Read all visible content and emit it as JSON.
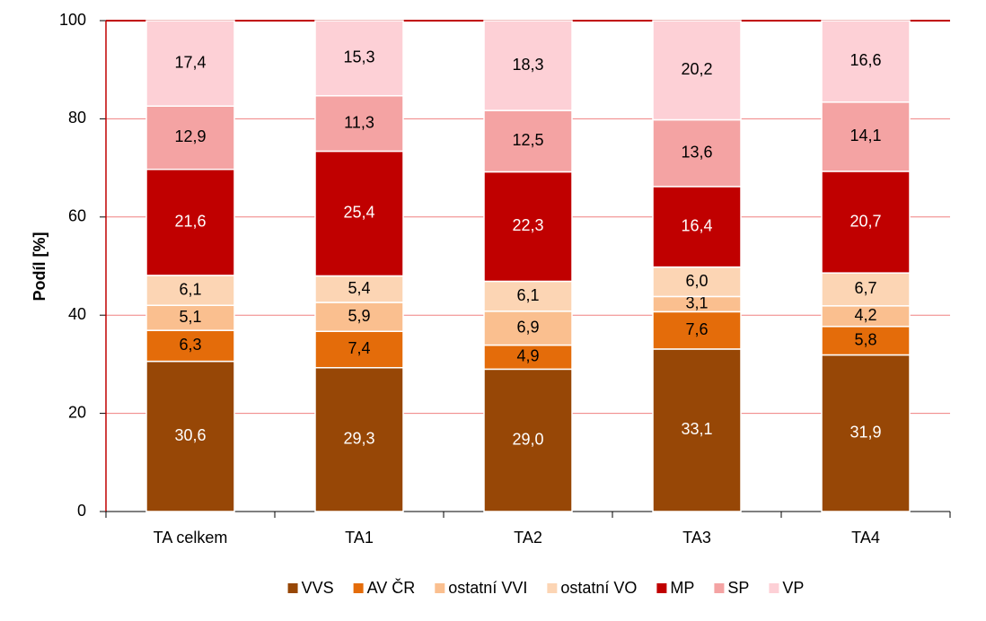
{
  "chart_data": {
    "type": "stacked_bar",
    "y_label": "Podíl [%]",
    "categories": [
      "TA celkem",
      "TA1",
      "TA2",
      "TA3",
      "TA4"
    ],
    "ylim": [
      0,
      100
    ],
    "yticks": [
      0,
      20,
      40,
      60,
      80,
      100
    ],
    "grid": true,
    "legend": "bottom",
    "series": [
      {
        "name": "VVS",
        "color": "#974706",
        "label_color": "#ffffff",
        "values": [
          30.6,
          29.3,
          29.0,
          33.1,
          31.9
        ],
        "value_labels": [
          "30,6",
          "29,3",
          "29,0",
          "33,1",
          "31,9"
        ]
      },
      {
        "name": "AV ČR",
        "color": "#e46c0a",
        "label_color": "#000000",
        "values": [
          6.3,
          7.4,
          4.9,
          7.6,
          5.8
        ],
        "value_labels": [
          "6,3",
          "7,4",
          "4,9",
          "7,6",
          "5,8"
        ]
      },
      {
        "name": "ostatní VVI",
        "color": "#fabf8f",
        "label_color": "#000000",
        "values": [
          5.1,
          5.9,
          6.9,
          3.1,
          4.2
        ],
        "value_labels": [
          "5,1",
          "5,9",
          "6,9",
          "3,1",
          "4,2"
        ]
      },
      {
        "name": "ostatní VO",
        "color": "#fcd5b4",
        "label_color": "#000000",
        "values": [
          6.1,
          5.4,
          6.1,
          6.0,
          6.7
        ],
        "value_labels": [
          "6,1",
          "5,4",
          "6,1",
          "6,0",
          "6,7"
        ]
      },
      {
        "name": "MP",
        "color": "#c00000",
        "label_color": "#ffffff",
        "values": [
          21.6,
          25.4,
          22.3,
          16.4,
          20.7
        ],
        "value_labels": [
          "21,6",
          "25,4",
          "22,3",
          "16,4",
          "20,7"
        ]
      },
      {
        "name": "SP",
        "color": "#f4a3a3",
        "label_color": "#000000",
        "values": [
          12.9,
          11.3,
          12.5,
          13.6,
          14.1
        ],
        "value_labels": [
          "12,9",
          "11,3",
          "12,5",
          "13,6",
          "14,1"
        ]
      },
      {
        "name": "VP",
        "color": "#fdd0d6",
        "label_color": "#000000",
        "values": [
          17.4,
          15.3,
          18.3,
          20.2,
          16.6
        ],
        "value_labels": [
          "17,4",
          "15,3",
          "18,3",
          "20,2",
          "16,6"
        ]
      }
    ]
  }
}
